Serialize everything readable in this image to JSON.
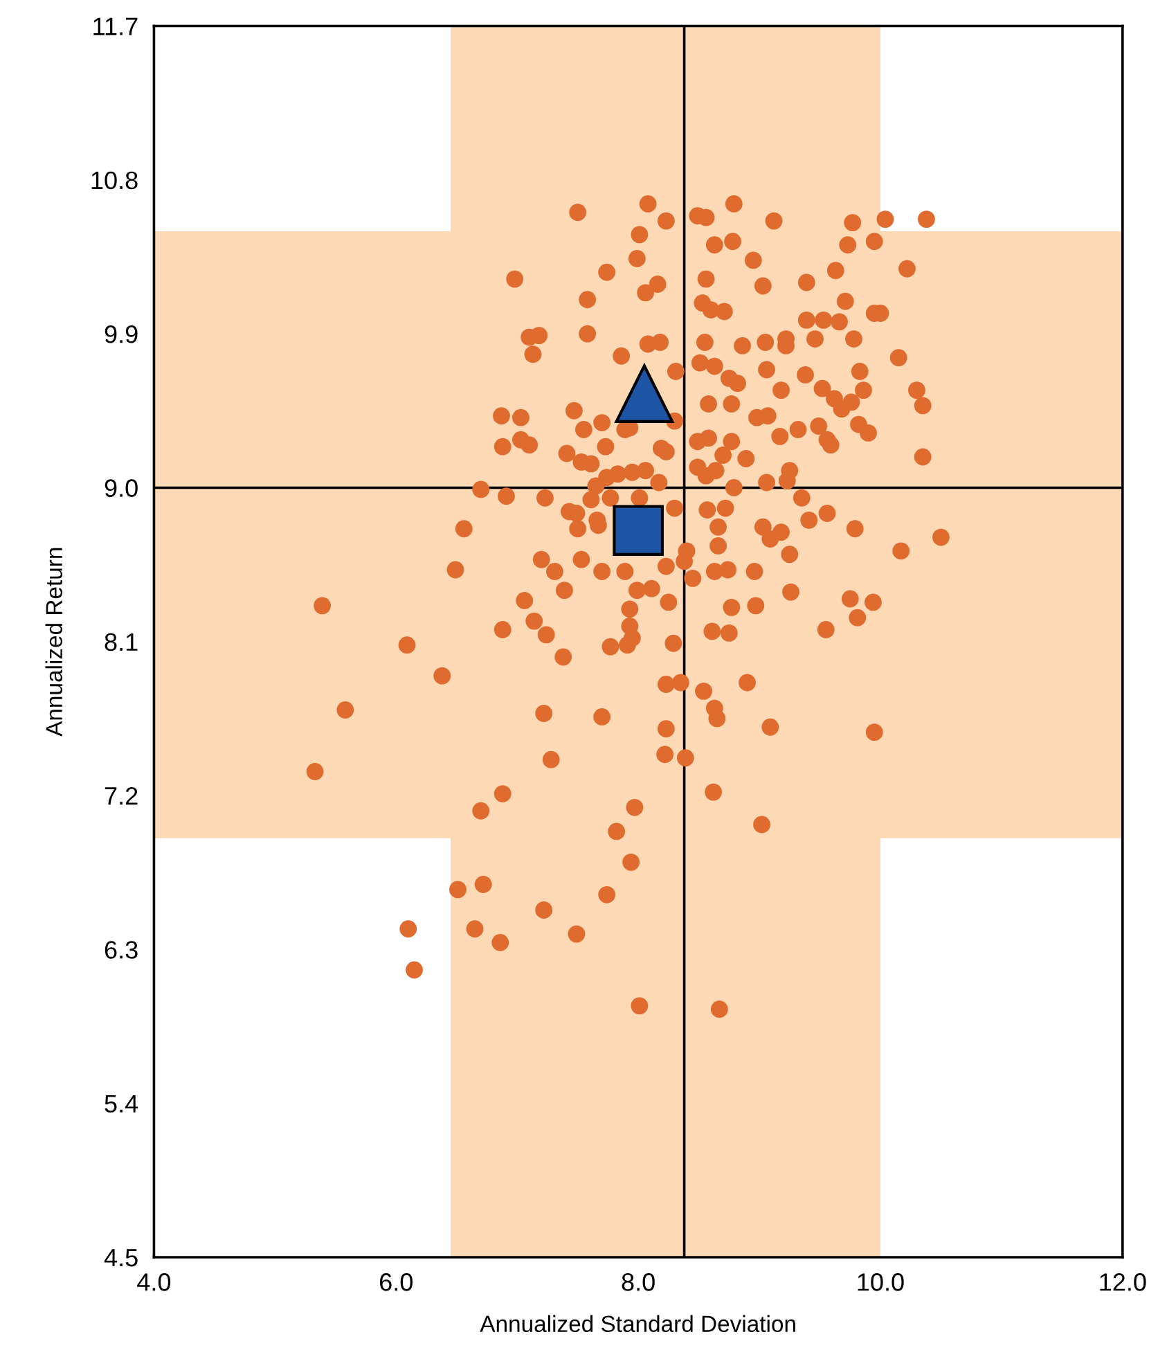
{
  "chart_data": {
    "type": "scatter",
    "xlabel": "Annualized Standard Deviation",
    "ylabel": "Annualized Return",
    "xlim": [
      4.0,
      12.0
    ],
    "ylim": [
      4.5,
      11.7
    ],
    "xticks": [
      {
        "value": 4.0,
        "label": "4.0"
      },
      {
        "value": 6.0,
        "label": "6.0"
      },
      {
        "value": 8.0,
        "label": "8.0"
      },
      {
        "value": 10.0,
        "label": "10.0"
      },
      {
        "value": 12.0,
        "label": "12.0"
      }
    ],
    "yticks": [
      {
        "value": 4.5,
        "label": "4.5"
      },
      {
        "value": 5.4,
        "label": "5.4"
      },
      {
        "value": 6.3,
        "label": "6.3"
      },
      {
        "value": 7.2,
        "label": "7.2"
      },
      {
        "value": 8.1,
        "label": "8.1"
      },
      {
        "value": 9.0,
        "label": "9.0"
      },
      {
        "value": 9.9,
        "label": "9.9"
      },
      {
        "value": 10.8,
        "label": "10.8"
      },
      {
        "value": 11.7,
        "label": "11.7"
      }
    ],
    "grid": false,
    "legend": false,
    "bands": [
      {
        "axis": "x",
        "from": 6.45,
        "to": 10.0,
        "color": "#fdd9b5"
      },
      {
        "axis": "y",
        "from": 6.95,
        "to": 10.5,
        "color": "#fdd9b5"
      }
    ],
    "ref_lines": [
      {
        "axis": "x",
        "value": 8.38,
        "color": "#000000"
      },
      {
        "axis": "y",
        "value": 9.0,
        "color": "#000000"
      }
    ],
    "series": [
      {
        "color": "#e06b2f",
        "marker": "circle",
        "x": [
          7.5,
          8.08,
          8.01,
          8.23,
          8.56,
          8.49,
          8.79,
          9.12,
          9.77,
          10.04,
          10.38,
          9.73,
          9.95,
          8.63,
          8.78,
          8.95,
          7.99,
          7.74,
          6.98,
          8.16,
          8.06,
          7.58,
          8.56,
          8.53,
          8.6,
          8.71,
          9.03,
          9.39,
          9.63,
          9.71,
          10.22,
          9.95,
          10.0,
          7.58,
          7.1,
          7.18,
          7.13,
          8.08,
          8.18,
          8.55,
          8.86,
          9.05,
          9.22,
          9.22,
          9.46,
          9.39,
          9.53,
          9.66,
          9.78,
          10.15,
          7.86,
          8.31,
          8.51,
          8.63,
          8.75,
          8.82,
          9.06,
          9.38,
          9.83,
          9.86,
          8.58,
          8.77,
          9.18,
          9.52,
          9.62,
          9.68,
          10.3,
          10.35,
          7.47,
          7.55,
          7.7,
          6.87,
          7.03,
          6.88,
          7.03,
          7.1,
          7.41,
          7.53,
          7.61,
          7.73,
          7.89,
          7.93,
          8.3,
          8.19,
          8.23,
          8.49,
          8.58,
          8.77,
          8.98,
          9.07,
          9.17,
          9.32,
          9.49,
          9.56,
          9.59,
          9.82,
          9.9,
          9.76,
          10.35,
          8.7,
          8.89,
          9.06,
          9.25,
          9.23,
          8.49,
          8.56,
          8.64,
          8.06,
          7.95,
          7.83,
          7.74,
          7.65,
          8.17,
          6.7,
          6.91,
          7.23,
          6.56,
          6.49,
          7.43,
          7.5,
          7.61,
          7.67,
          7.49,
          7.77,
          8.01,
          8.3,
          8.57,
          8.72,
          8.79,
          9.03,
          9.09,
          9.18,
          9.35,
          9.41,
          9.56,
          9.79,
          10.17,
          10.5,
          7.66,
          7.7,
          7.53,
          7.2,
          7.31,
          7.39,
          7.06,
          7.14,
          7.24,
          6.88,
          7.38,
          5.39,
          6.09,
          6.38,
          5.58,
          5.33,
          7.22,
          7.7,
          7.28,
          7.89,
          7.99,
          7.93,
          7.93,
          7.91,
          7.77,
          7.95,
          8.11,
          8.25,
          8.29,
          8.23,
          8.4,
          8.38,
          8.45,
          8.35,
          8.23,
          8.54,
          8.63,
          8.65,
          8.23,
          8.22,
          8.39,
          8.61,
          8.75,
          8.74,
          8.63,
          8.77,
          8.66,
          8.66,
          8.97,
          8.96,
          9.26,
          9.25,
          9.55,
          9.75,
          9.94,
          9.81,
          8.9,
          9.09,
          9.95,
          8.62,
          7.97,
          6.7,
          6.88,
          7.82,
          9.02,
          7.94,
          6.72,
          6.51,
          7.74,
          6.65,
          7.22,
          6.86,
          7.49,
          6.1,
          6.15,
          8.01,
          8.67
        ],
        "values": [
          10.61,
          10.66,
          10.48,
          10.56,
          10.58,
          10.59,
          10.66,
          10.56,
          10.55,
          10.57,
          10.57,
          10.42,
          10.44,
          10.42,
          10.44,
          10.33,
          10.34,
          10.26,
          10.22,
          10.19,
          10.14,
          10.1,
          10.22,
          10.08,
          10.04,
          10.03,
          10.18,
          10.2,
          10.27,
          10.09,
          10.28,
          10.02,
          10.02,
          9.9,
          9.88,
          9.89,
          9.78,
          9.84,
          9.85,
          9.85,
          9.83,
          9.85,
          9.87,
          9.83,
          9.87,
          9.98,
          9.98,
          9.97,
          9.87,
          9.76,
          9.77,
          9.68,
          9.73,
          9.71,
          9.64,
          9.61,
          9.69,
          9.66,
          9.68,
          9.57,
          9.49,
          9.49,
          9.57,
          9.58,
          9.52,
          9.46,
          9.57,
          9.48,
          9.45,
          9.34,
          9.38,
          9.42,
          9.41,
          9.24,
          9.28,
          9.25,
          9.2,
          9.15,
          9.14,
          9.24,
          9.34,
          9.35,
          9.39,
          9.23,
          9.21,
          9.27,
          9.29,
          9.27,
          9.41,
          9.42,
          9.3,
          9.34,
          9.36,
          9.28,
          9.25,
          9.37,
          9.32,
          9.5,
          9.18,
          9.19,
          9.17,
          9.03,
          9.1,
          9.04,
          9.12,
          9.07,
          9.1,
          9.1,
          9.09,
          9.08,
          9.06,
          9.01,
          9.03,
          8.99,
          8.95,
          8.94,
          8.76,
          8.52,
          8.86,
          8.76,
          8.93,
          8.78,
          8.85,
          8.94,
          8.94,
          8.88,
          8.87,
          8.88,
          9.0,
          8.77,
          8.7,
          8.74,
          8.94,
          8.81,
          8.85,
          8.76,
          8.63,
          8.71,
          8.81,
          8.51,
          8.58,
          8.58,
          8.51,
          8.4,
          8.34,
          8.22,
          8.14,
          8.17,
          8.01,
          8.31,
          8.08,
          7.9,
          7.7,
          7.34,
          7.68,
          7.66,
          7.41,
          8.51,
          8.4,
          8.29,
          8.19,
          8.08,
          8.07,
          8.12,
          8.41,
          8.33,
          8.09,
          8.54,
          8.63,
          8.57,
          8.47,
          7.86,
          7.85,
          7.81,
          7.71,
          7.65,
          7.59,
          7.44,
          7.42,
          8.16,
          8.15,
          8.52,
          8.51,
          8.3,
          8.66,
          8.77,
          8.31,
          8.51,
          8.39,
          8.61,
          8.17,
          8.35,
          8.33,
          8.24,
          7.86,
          7.6,
          7.57,
          7.22,
          7.13,
          7.11,
          7.21,
          6.99,
          7.03,
          6.81,
          6.68,
          6.65,
          6.62,
          6.42,
          6.53,
          6.34,
          6.39,
          6.42,
          6.18,
          5.97,
          5.95
        ]
      },
      {
        "color": "#1f55a5",
        "marker": "triangle",
        "x": [
          8.05
        ],
        "values": [
          9.55
        ]
      },
      {
        "color": "#1f55a5",
        "marker": "square",
        "x": [
          8.0
        ],
        "values": [
          8.75
        ]
      }
    ]
  }
}
